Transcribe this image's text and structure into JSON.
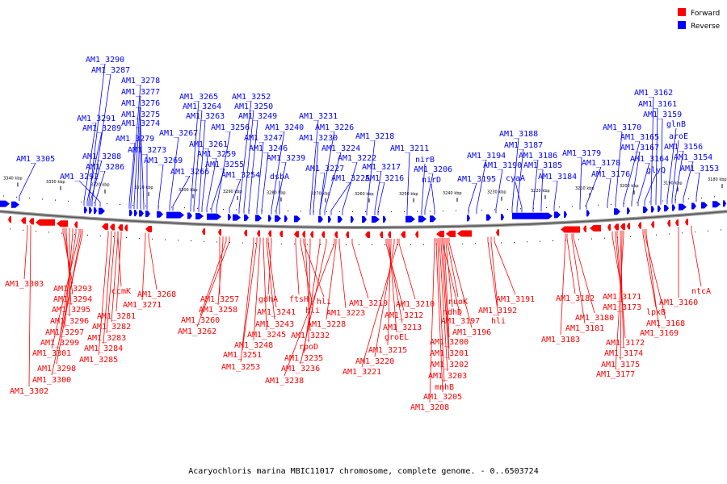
{
  "caption": "Acaryochloris marina MBIC11017 chromosome, complete genome. - 0..6503724",
  "legend": [
    {
      "label": "Forward",
      "color": "#ff0000"
    },
    {
      "label": "Reverse",
      "color": "#0000ff"
    }
  ],
  "ticks": [
    "3340 kbp",
    "3330 kbp",
    "3320 kbp",
    "3310 kbp",
    "3300 kbp",
    "3290 kbp",
    "3280 kbp",
    "3270 kbp",
    "3260 kbp",
    "3250 kbp",
    "3240 kbp",
    "3230 kbp",
    "3220 kbp",
    "3210 kbp",
    "3200 kbp",
    "3190 kbp",
    "3180 kbp"
  ],
  "reverse_labels": [
    "AM1_3290",
    "AM1_3287",
    "AM1_3278",
    "AM1_3277",
    "AM1_3276",
    "AM1_3275",
    "AM1_3274",
    "AM1_3291",
    "AM1_3289",
    "AM1_3279",
    "AM1_3273",
    "AM1_3288",
    "AM1_3286",
    "AM1_3292",
    "AM1_3305",
    "AM1_3269",
    "AM1_3267",
    "AM1_3266",
    "AM1_3265",
    "AM1_3264",
    "AM1_3263",
    "AM1_3261",
    "AM1_3259",
    "AM1_3255",
    "AM1_3254",
    "AM1_3256",
    "AM1_3252",
    "AM1_3250",
    "AM1_3249",
    "AM1_3247",
    "AM1_3246",
    "AM1_3240",
    "AM1_3239",
    "dsbA",
    "AM1_3231",
    "AM1_3226",
    "AM1_3230",
    "AM1_3224",
    "AM1_3222",
    "AM1_3227",
    "AM1_3225",
    "AM1_3218",
    "AM1_3217",
    "AM1_3216",
    "AM1_3211",
    "nirB",
    "AM1_3206",
    "nirD",
    "AM1_3194",
    "AM1_3195",
    "AM1_3190",
    "AM1_3188",
    "AM1_3187",
    "AM1_3186",
    "cyaA",
    "AM1_3185",
    "AM1_3184",
    "AM1_3179",
    "AM1_3178",
    "AM1_3176",
    "AM1_3170",
    "AM1_3165",
    "AM1_3167",
    "AM1_3164",
    "glyQ",
    "AM1_3162",
    "AM1_3161",
    "AM1_3159",
    "glnB",
    "aroE",
    "AM1_3156",
    "AM1_3154",
    "AM1_3153"
  ],
  "forward_labels": [
    "AM1_3303",
    "AM1_3293",
    "AM1_3294",
    "AM1_3295",
    "AM1_3296",
    "AM1_3297",
    "AM1_3299",
    "AM1_3301",
    "AM1_3298",
    "AM1_3300",
    "AM1_3302",
    "ccmK",
    "AM1_3281",
    "AM1_3282",
    "AM1_3283",
    "AM1_3284",
    "AM1_3285",
    "AM1_3268",
    "AM1_3271",
    "AM1_3257",
    "AM1_3258",
    "AM1_3260",
    "AM1_3262",
    "gdhA",
    "AM1_3241",
    "AM1_3243",
    "AM1_3245",
    "AM1_3248",
    "AM1_3251",
    "AM1_3253",
    "ftsH",
    "hli",
    "hli",
    "AM1_3232",
    "rpoD",
    "AM1_3235",
    "AM1_3236",
    "AM1_3238",
    "AM1_3228",
    "AM1_3223",
    "AM1_3219",
    "AM1_3210",
    "AM1_3212",
    "AM1_3213",
    "groEL",
    "AM1_3215",
    "AM1_3220",
    "AM1_3221",
    "nuoK",
    "ndhD",
    "AM1_3197",
    "AM1_3196",
    "AM1_3200",
    "AM1_3201",
    "AM1_3202",
    "AM1_3203",
    "mnhB",
    "AM1_3205",
    "AM1_3208",
    "AM1_3191",
    "AM1_3192",
    "hli",
    "AM1_3182",
    "AM1_3183",
    "AM1_3180",
    "AM1_3181",
    "AM1_3171",
    "AM1_3173",
    "AM1_3172",
    "AM1_3174",
    "AM1_3175",
    "AM1_3177",
    "lpxB",
    "AM1_3168",
    "AM1_3169",
    "ntcA",
    "AM1_3160"
  ]
}
